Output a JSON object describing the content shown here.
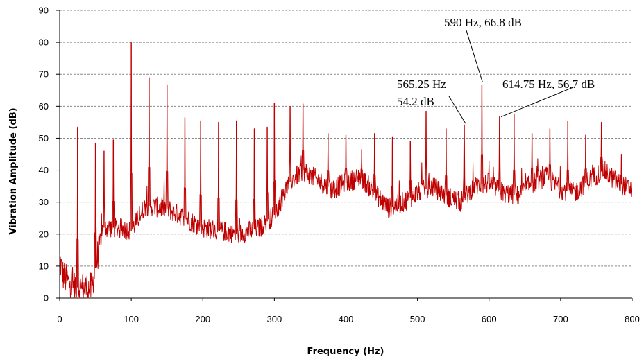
{
  "chart_data": {
    "type": "line",
    "title": "",
    "xlabel": "Frequency (Hz)",
    "ylabel": "Vibration Amplitude (dB)",
    "xlim": [
      0,
      800
    ],
    "ylim": [
      0,
      90
    ],
    "x_ticks": [
      "0",
      "100",
      "200",
      "300",
      "400",
      "500",
      "600",
      "700",
      "800"
    ],
    "y_ticks": [
      "0",
      "10",
      "20",
      "30",
      "40",
      "50",
      "60",
      "70",
      "80",
      "90"
    ],
    "grid": "horizontal dashed",
    "series": [
      {
        "color": "#c00000",
        "baseline": [
          [
            0,
            12
          ],
          [
            5,
            7
          ],
          [
            15,
            4
          ],
          [
            30,
            3
          ],
          [
            45,
            3
          ],
          [
            52,
            12
          ],
          [
            60,
            22
          ],
          [
            80,
            22
          ],
          [
            100,
            21
          ],
          [
            120,
            29
          ],
          [
            150,
            28
          ],
          [
            200,
            22
          ],
          [
            250,
            20
          ],
          [
            280,
            22
          ],
          [
            300,
            26
          ],
          [
            320,
            36
          ],
          [
            340,
            40
          ],
          [
            360,
            37
          ],
          [
            380,
            34
          ],
          [
            400,
            36
          ],
          [
            420,
            38
          ],
          [
            440,
            33
          ],
          [
            460,
            28
          ],
          [
            480,
            30
          ],
          [
            500,
            33
          ],
          [
            520,
            35
          ],
          [
            540,
            32
          ],
          [
            560,
            30
          ],
          [
            580,
            35
          ],
          [
            600,
            36
          ],
          [
            620,
            33
          ],
          [
            640,
            32
          ],
          [
            660,
            36
          ],
          [
            680,
            38
          ],
          [
            700,
            34
          ],
          [
            720,
            33
          ],
          [
            740,
            37
          ],
          [
            760,
            40
          ],
          [
            780,
            36
          ],
          [
            800,
            34
          ]
        ],
        "peaks": [
          [
            25,
            53.5
          ],
          [
            50,
            48.5
          ],
          [
            62,
            46
          ],
          [
            75,
            49.5
          ],
          [
            100,
            80
          ],
          [
            125,
            69
          ],
          [
            150,
            66.8
          ],
          [
            175,
            56.5
          ],
          [
            197,
            55.5
          ],
          [
            222,
            55
          ],
          [
            247,
            55.5
          ],
          [
            272,
            53
          ],
          [
            290,
            53.5
          ],
          [
            300,
            61
          ],
          [
            322,
            60
          ],
          [
            340,
            60.8
          ],
          [
            375,
            51.5
          ],
          [
            400,
            51
          ],
          [
            422,
            46.5
          ],
          [
            440,
            51.5
          ],
          [
            465,
            50.5
          ],
          [
            490,
            49
          ],
          [
            512,
            58.5
          ],
          [
            540,
            53
          ],
          [
            565.25,
            54.2
          ],
          [
            590,
            66.8
          ],
          [
            614.75,
            56.7
          ],
          [
            635,
            57.5
          ],
          [
            660,
            51.5
          ],
          [
            685,
            53
          ],
          [
            710,
            55.3
          ],
          [
            735,
            51
          ],
          [
            757,
            55
          ],
          [
            785,
            45
          ]
        ]
      }
    ],
    "annotations": [
      {
        "label": "590 Hz, 66.8 dB",
        "x": 590,
        "y": 66.8
      },
      {
        "label": "565.25 Hz",
        "x": 565.25,
        "y": 54.2
      },
      {
        "label": "54.2 dB",
        "x": 565.25,
        "y": 54.2
      },
      {
        "label": "614.75 Hz, 56.7 dB",
        "x": 614.75,
        "y": 56.7
      }
    ]
  }
}
